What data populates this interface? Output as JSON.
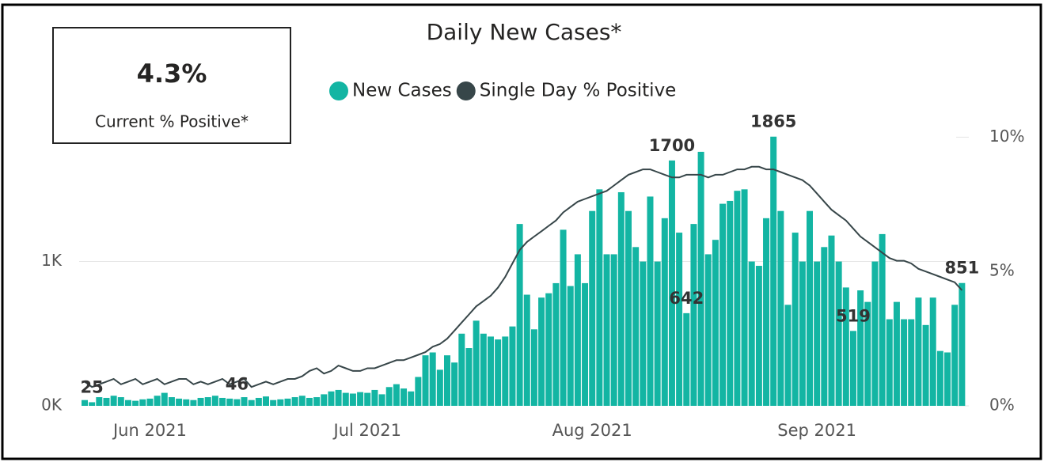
{
  "card": {
    "value": "4.3%",
    "label": "Current % Positive*"
  },
  "chart_data": {
    "type": "bar-line",
    "title": "Daily New Cases*",
    "categories": [
      null,
      null,
      null,
      null,
      null,
      null,
      null,
      null,
      null,
      "Jun 2021",
      null,
      null,
      null,
      null,
      null,
      null,
      null,
      null,
      null,
      null,
      null,
      null,
      null,
      null,
      null,
      null,
      null,
      null,
      null,
      null,
      null,
      null,
      null,
      null,
      null,
      null,
      null,
      null,
      null,
      "Jul 2021",
      null,
      null,
      null,
      null,
      null,
      null,
      null,
      null,
      null,
      null,
      null,
      null,
      null,
      null,
      null,
      null,
      null,
      null,
      null,
      null,
      null,
      null,
      null,
      null,
      null,
      null,
      null,
      null,
      null,
      null,
      "Aug 2021",
      null,
      null,
      null,
      null,
      null,
      null,
      null,
      null,
      null,
      null,
      null,
      null,
      null,
      null,
      null,
      null,
      null,
      null,
      null,
      null,
      null,
      null,
      null,
      null,
      null,
      null,
      null,
      null,
      null,
      null,
      "Sep 2021",
      null,
      null,
      null,
      null,
      null,
      null,
      null,
      null,
      null,
      null,
      null,
      null,
      null,
      null,
      null,
      null,
      null,
      null,
      null,
      null
    ],
    "series": [
      {
        "name": "New Cases",
        "color": "#13b5a3",
        "values": [
          40,
          25,
          60,
          55,
          70,
          60,
          40,
          35,
          45,
          50,
          70,
          90,
          60,
          50,
          45,
          40,
          55,
          60,
          70,
          55,
          50,
          46,
          60,
          40,
          55,
          65,
          40,
          45,
          50,
          60,
          70,
          55,
          60,
          80,
          100,
          110,
          90,
          85,
          95,
          90,
          110,
          80,
          130,
          150,
          120,
          100,
          200,
          350,
          370,
          250,
          350,
          300,
          500,
          400,
          590,
          500,
          480,
          460,
          480,
          550,
          1260,
          770,
          530,
          750,
          780,
          850,
          1220,
          830,
          1050,
          850,
          1350,
          1500,
          1050,
          1050,
          1480,
          1350,
          1100,
          1000,
          1450,
          1000,
          1300,
          1700,
          1200,
          642,
          1260,
          1760,
          1050,
          1150,
          1400,
          1420,
          1490,
          1500,
          1000,
          970,
          1300,
          1865,
          1350,
          700,
          1200,
          1000,
          1350,
          1000,
          1100,
          1180,
          1000,
          820,
          519,
          800,
          720,
          1000,
          1190,
          600,
          720,
          600,
          600,
          750,
          560,
          750,
          380,
          370,
          700,
          851
        ],
        "value_labels": [
          null,
          "25",
          null,
          null,
          null,
          null,
          null,
          null,
          null,
          null,
          null,
          null,
          null,
          null,
          null,
          null,
          null,
          null,
          null,
          null,
          null,
          "46",
          null,
          null,
          null,
          null,
          null,
          null,
          null,
          null,
          null,
          null,
          null,
          null,
          null,
          null,
          null,
          null,
          null,
          null,
          null,
          null,
          null,
          null,
          null,
          null,
          null,
          null,
          null,
          null,
          null,
          null,
          null,
          null,
          null,
          null,
          null,
          null,
          null,
          null,
          null,
          null,
          null,
          null,
          null,
          null,
          null,
          null,
          null,
          null,
          null,
          null,
          null,
          null,
          null,
          null,
          null,
          null,
          null,
          null,
          null,
          "1700",
          null,
          "642",
          null,
          null,
          null,
          null,
          null,
          null,
          null,
          null,
          null,
          null,
          null,
          "1865",
          null,
          null,
          null,
          null,
          null,
          null,
          null,
          null,
          null,
          null,
          "519",
          null,
          null,
          null,
          null,
          null,
          null,
          null,
          null,
          null,
          null,
          null,
          null,
          null,
          null,
          "851"
        ]
      },
      {
        "name": "Single Day % Positive",
        "color": "#374649",
        "axis": "y2",
        "values": [
          0.9,
          0.7,
          0.8,
          0.9,
          1.0,
          0.8,
          0.9,
          1.0,
          0.8,
          0.9,
          1.0,
          0.8,
          0.9,
          1.0,
          1.0,
          0.8,
          0.9,
          0.8,
          0.9,
          1.0,
          0.8,
          0.9,
          1.0,
          0.7,
          0.8,
          0.9,
          0.8,
          0.9,
          1.0,
          1.0,
          1.1,
          1.3,
          1.4,
          1.2,
          1.3,
          1.5,
          1.4,
          1.3,
          1.3,
          1.4,
          1.4,
          1.5,
          1.6,
          1.7,
          1.7,
          1.8,
          1.9,
          2.0,
          2.2,
          2.3,
          2.5,
          2.8,
          3.1,
          3.4,
          3.7,
          3.9,
          4.1,
          4.4,
          4.8,
          5.3,
          5.8,
          6.1,
          6.3,
          6.5,
          6.7,
          6.9,
          7.2,
          7.4,
          7.6,
          7.7,
          7.8,
          7.9,
          8.0,
          8.2,
          8.4,
          8.6,
          8.7,
          8.8,
          8.8,
          8.7,
          8.6,
          8.5,
          8.5,
          8.6,
          8.6,
          8.6,
          8.5,
          8.6,
          8.6,
          8.7,
          8.8,
          8.8,
          8.9,
          8.9,
          8.8,
          8.8,
          8.7,
          8.6,
          8.5,
          8.4,
          8.2,
          7.9,
          7.6,
          7.3,
          7.1,
          6.9,
          6.6,
          6.3,
          6.1,
          5.9,
          5.7,
          5.5,
          5.4,
          5.4,
          5.3,
          5.1,
          5.0,
          4.9,
          4.8,
          4.7,
          4.6,
          4.3
        ]
      }
    ],
    "ylim": [
      0,
      1880
    ],
    "yticks": [
      {
        "value": 0,
        "label": "0K"
      },
      {
        "value": 1000,
        "label": "1K"
      }
    ],
    "y2lim": [
      0,
      10.1
    ],
    "y2ticks": [
      {
        "value": 0,
        "label": "0%"
      },
      {
        "value": 5,
        "label": "5%"
      },
      {
        "value": 10,
        "label": "10%"
      }
    ],
    "grid": true
  }
}
